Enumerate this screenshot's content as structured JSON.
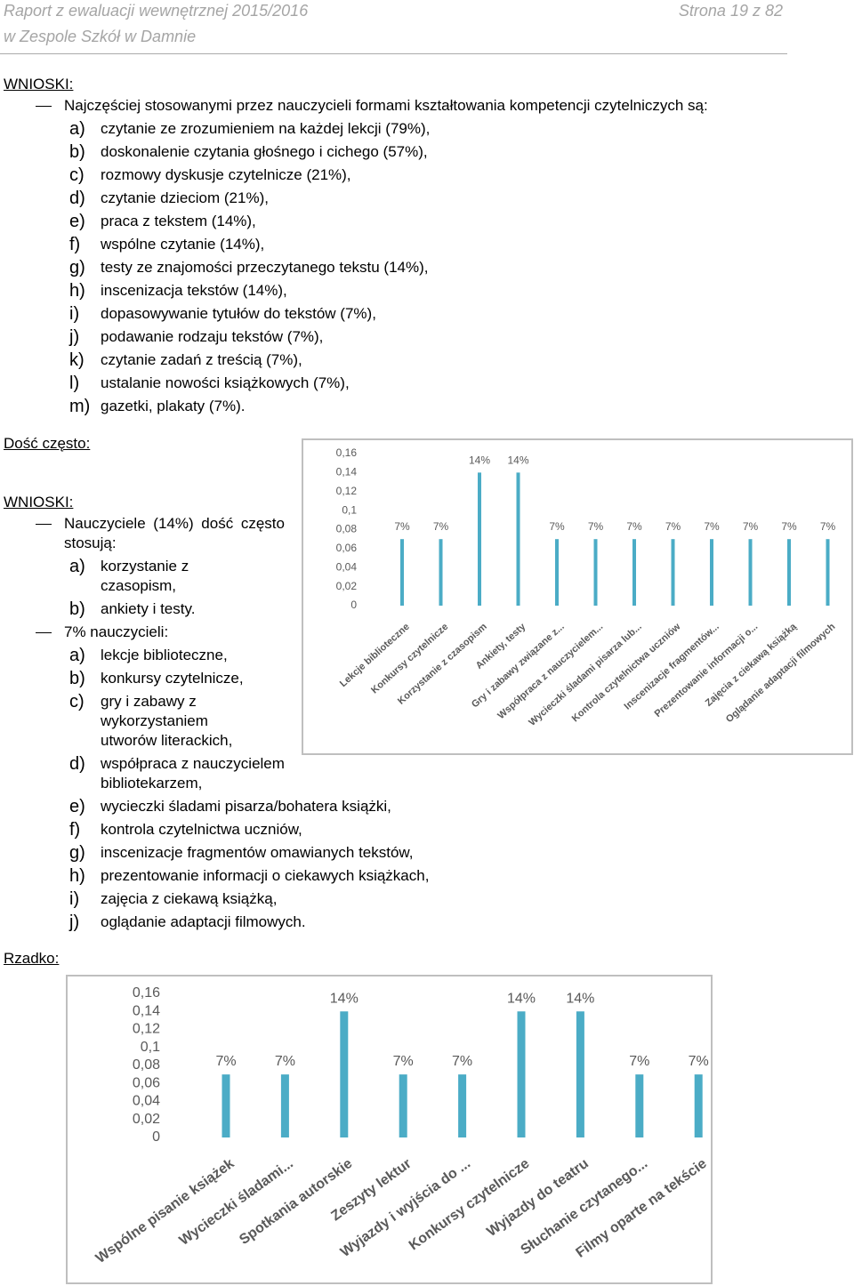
{
  "header": {
    "title": "Raport z ewaluacji wewnętrznej 2015/2016",
    "subtitle": "w Zespole Szkół w Damnie",
    "page": "Strona 19 z 82"
  },
  "section1": {
    "heading": "WNIOSKI:",
    "intro": "Najczęściej stosowanymi przez nauczycieli formami kształtowania kompetencji  czytelniczych są:",
    "items": [
      {
        "marker": "a)",
        "text": "czytanie ze zrozumieniem na każdej lekcji (79%),"
      },
      {
        "marker": "b)",
        "text": "doskonalenie czytania głośnego i cichego (57%),"
      },
      {
        "marker": "c)",
        "text": "rozmowy dyskusje czytelnicze (21%),"
      },
      {
        "marker": "d)",
        "text": "czytanie dzieciom (21%),"
      },
      {
        "marker": "e)",
        "text": "praca z tekstem (14%),"
      },
      {
        "marker": "f)",
        "text": "wspólne czytanie (14%),"
      },
      {
        "marker": "g)",
        "text": "testy ze znajomości przeczytanego tekstu (14%),"
      },
      {
        "marker": "h)",
        "text": "inscenizacja tekstów (14%),"
      },
      {
        "marker": "i)",
        "text": "dopasowywanie tytułów do tekstów (7%),"
      },
      {
        "marker": "j)",
        "text": "podawanie rodzaju tekstów (7%),"
      },
      {
        "marker": "k)",
        "text": "czytanie zadań z treścią (7%),"
      },
      {
        "marker": "l)",
        "text": "ustalanie nowości książkowych (7%),"
      },
      {
        "marker": "m)",
        "text": "gazetki, plakaty (7%)."
      }
    ]
  },
  "section2": {
    "heading": "Dość często:",
    "conclusions_heading": "WNIOSKI:",
    "groups": [
      {
        "intro": "Nauczyciele (14%) dość często stosują:",
        "items": [
          {
            "marker": "a)",
            "text": "korzystanie z czasopism,"
          },
          {
            "marker": "b)",
            "text": "ankiety i testy."
          }
        ]
      },
      {
        "intro": "7% nauczycieli:",
        "items": [
          {
            "marker": "a)",
            "text": "lekcje biblioteczne,"
          },
          {
            "marker": "b)",
            "text": "konkursy czytelnicze,"
          },
          {
            "marker": "c)",
            "text": "gry i zabawy z wykorzystaniem utworów literackich,"
          },
          {
            "marker": "d)",
            "text": "współpraca z nauczycielem bibliotekarzem,"
          },
          {
            "marker": "e)",
            "text": "wycieczki śladami pisarza/bohatera książki,"
          },
          {
            "marker": "f)",
            "text": "kontrola czytelnictwa uczniów,"
          },
          {
            "marker": "g)",
            "text": "inscenizacje fragmentów omawianych tekstów,"
          },
          {
            "marker": "h)",
            "text": "prezentowanie informacji o ciekawych książkach,"
          },
          {
            "marker": "i)",
            "text": "zajęcia z ciekawą książką,"
          },
          {
            "marker": "j)",
            "text": "oglądanie adaptacji filmowych."
          }
        ]
      }
    ]
  },
  "section3": {
    "heading": "Rzadko:"
  },
  "chart_data": [
    {
      "type": "bar",
      "color": "#4bacc6",
      "categories": [
        "Lekcje biblioteczne",
        "Konkursy czytelnicze",
        "Korzystanie z czasopism",
        "Ankiety, testy",
        "Gry i zabawy związane z...",
        "Współpraca z nauczycielem...",
        "Wycieczki śladami pisarza lub...",
        "Kontrola czytelnictwa uczniów",
        "Inscenizacje fragmentów...",
        "Prezentowanie informacji o...",
        "Zajęcia z ciekawą książką",
        "Oglądanie adaptacji filmowych"
      ],
      "values": [
        0.07,
        0.07,
        0.14,
        0.14,
        0.07,
        0.07,
        0.07,
        0.07,
        0.07,
        0.07,
        0.07,
        0.07
      ],
      "value_labels": [
        "7%",
        "7%",
        "14%",
        "14%",
        "7%",
        "7%",
        "7%",
        "7%",
        "7%",
        "7%",
        "7%",
        "7%"
      ],
      "ylim": [
        0,
        0.16
      ],
      "yticks": [
        {
          "value": 0,
          "label": "0"
        },
        {
          "value": 0.02,
          "label": "0,02"
        },
        {
          "value": 0.04,
          "label": "0,04"
        },
        {
          "value": 0.06,
          "label": "0,06"
        },
        {
          "value": 0.08,
          "label": "0,08"
        },
        {
          "value": 0.1,
          "label": "0,1"
        },
        {
          "value": 0.12,
          "label": "0,12"
        },
        {
          "value": 0.14,
          "label": "0,14"
        },
        {
          "value": 0.16,
          "label": "0,16"
        }
      ]
    },
    {
      "type": "bar",
      "color": "#4bacc6",
      "categories": [
        "Wspólne pisanie książek",
        "Wycieczki śladami...",
        "Spotkania autorskie",
        "Zeszyty lektur",
        "Wyjazdy i wyjścia do ...",
        "Konkursy czytelnicze",
        "Wyjazdy do teatru",
        "Słuchanie czytanego...",
        "Filmy oparte na tekście"
      ],
      "values": [
        0.07,
        0.07,
        0.14,
        0.07,
        0.07,
        0.14,
        0.14,
        0.07,
        0.07
      ],
      "value_labels": [
        "7%",
        "7%",
        "14%",
        "7%",
        "7%",
        "14%",
        "14%",
        "7%",
        "7%"
      ],
      "ylim": [
        0,
        0.16
      ],
      "yticks": [
        {
          "value": 0,
          "label": "0"
        },
        {
          "value": 0.02,
          "label": "0,02"
        },
        {
          "value": 0.04,
          "label": "0,04"
        },
        {
          "value": 0.06,
          "label": "0,06"
        },
        {
          "value": 0.08,
          "label": "0,08"
        },
        {
          "value": 0.1,
          "label": "0,1"
        },
        {
          "value": 0.12,
          "label": "0,12"
        },
        {
          "value": 0.14,
          "label": "0,14"
        },
        {
          "value": 0.16,
          "label": "0,16"
        }
      ]
    }
  ]
}
